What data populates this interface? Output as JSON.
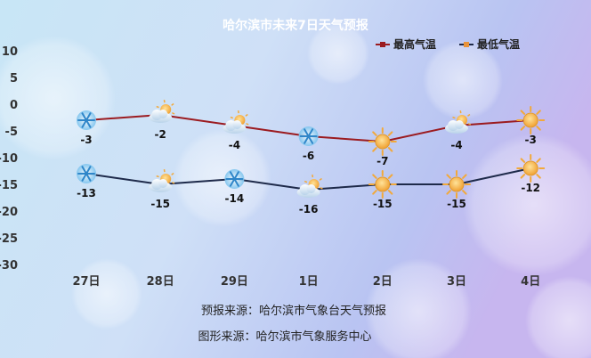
{
  "chart_data": {
    "type": "line",
    "title": "哈尔滨市未来7日天气预报",
    "categories": [
      "27日",
      "28日",
      "29日",
      "1日",
      "2日",
      "3日",
      "4日"
    ],
    "ylim": [
      -30,
      10
    ],
    "yticks": [
      10,
      5,
      0,
      -5,
      -10,
      -15,
      -20,
      -25,
      -30
    ],
    "grid": false,
    "legend_position": "top-right",
    "series": [
      {
        "name": "最高气温",
        "color": "#9b1b20",
        "values": [
          -3,
          -2,
          -4,
          -6,
          -7,
          -4,
          -3
        ]
      },
      {
        "name": "最低气温",
        "color": "#1e2a4a",
        "legend_marker_color": "#e8933a",
        "values": [
          -13,
          -15,
          -14,
          -16,
          -15,
          -15,
          -12
        ]
      }
    ],
    "weather_icons": {
      "high": [
        "snow-icon",
        "cloudy-sun-icon",
        "cloudy-sun-icon",
        "snow-icon",
        "sun-icon",
        "cloudy-sun-icon",
        "sun-icon"
      ],
      "low": [
        "snow-icon",
        "cloudy-sun-icon",
        "snow-icon",
        "cloudy-sun-icon",
        "sun-icon",
        "sun-icon",
        "sun-icon"
      ]
    },
    "annotations": [
      "预报来源：哈尔滨市气象台天气预报",
      "图形来源：哈尔滨市气象服务中心"
    ]
  }
}
